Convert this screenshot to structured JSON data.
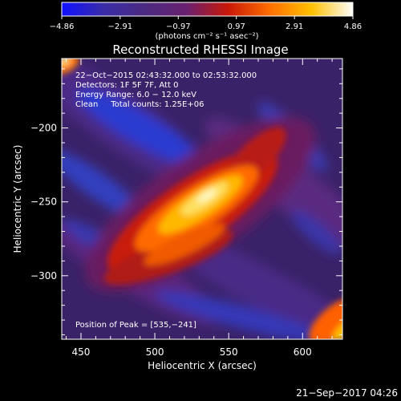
{
  "chart_data": {
    "type": "heatmap",
    "title": "Reconstructed RHESSI Image",
    "xlabel": "Heliocentric X (arcsec)",
    "ylabel": "Heliocentric Y (arcsec)",
    "xlim": [
      437,
      627
    ],
    "ylim": [
      -343,
      -153
    ],
    "xticks": [
      {
        "value": 450,
        "label": "450"
      },
      {
        "value": 500,
        "label": "500"
      },
      {
        "value": 550,
        "label": "550"
      },
      {
        "value": 600,
        "label": "600"
      }
    ],
    "yticks": [
      {
        "value": -200,
        "label": "−200"
      },
      {
        "value": -250,
        "label": "−250"
      },
      {
        "value": -300,
        "label": "−300"
      }
    ],
    "colorbar": {
      "min": -4.86,
      "max": 4.86,
      "ticks": [
        {
          "value": -4.86,
          "label": "−4.86"
        },
        {
          "value": -2.91,
          "label": "−2.91"
        },
        {
          "value": -0.97,
          "label": "−0.97"
        },
        {
          "value": 0.97,
          "label": "0.97"
        },
        {
          "value": 2.91,
          "label": "2.91"
        },
        {
          "value": 4.86,
          "label": "4.86"
        }
      ],
      "units_label": "(photons cm⁻² s⁻¹ asec⁻²)",
      "colormap": [
        "#1010ff",
        "#3a2ca8",
        "#4a2a80",
        "#6a2070",
        "#c81808",
        "#ff6e00",
        "#ffc000",
        "#ffffff"
      ]
    },
    "peak": {
      "x": 535,
      "y": -241
    },
    "annotations": [
      "22−Oct−2015 02:43:32.000 to 02:53:32.000",
      "Detectors: 1F 5F 7F, Att 0",
      "Energy Range: 6.0 − 12.0 keV",
      "Clean     Total counts: 1.25E+06"
    ],
    "peak_label": "Position of Peak = [535,−241]"
  },
  "footer": {
    "timestamp": "21−Sep−2017 04:26"
  }
}
